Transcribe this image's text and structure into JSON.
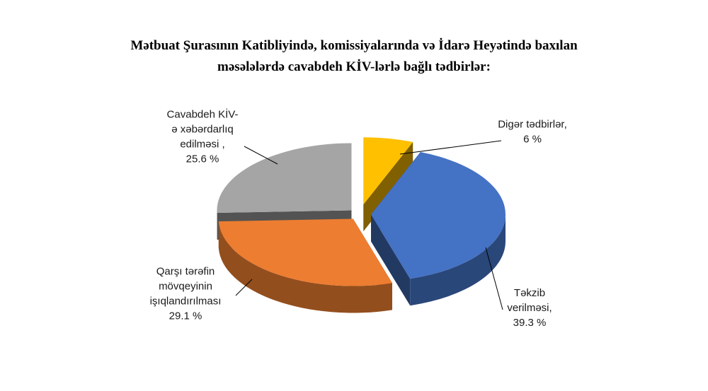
{
  "chart_data": {
    "type": "pie",
    "title_lines": [
      "Mətbuat Şurasının Katibliyində, komissiyalarında və İdarə Heyətində baxılan",
      "məsələlərdə cavabdeh KİV-lərlə bağlı tədbirlər:"
    ],
    "slices": [
      {
        "label_lines": [
          "Digər tədbirlər,",
          "6 %"
        ],
        "value": 6,
        "color": "#FFC000"
      },
      {
        "label_lines": [
          "Təkzib",
          "verilməsi,",
          "39.3 %"
        ],
        "value": 39.3,
        "color": "#4472C4"
      },
      {
        "label_lines": [
          "Qarşı tərəfin",
          "mövqeyinin",
          "işıqlandırılması",
          "29.1 %"
        ],
        "value": 29.1,
        "color": "#ED7D31"
      },
      {
        "label_lines": [
          "Cavabdeh KİV-",
          "ə xəbərdarlıq",
          "edilməsi ,",
          "25.6 %"
        ],
        "value": 25.6,
        "color": "#A5A5A5"
      }
    ],
    "three_d": true,
    "exploded": true,
    "legend": "none"
  }
}
